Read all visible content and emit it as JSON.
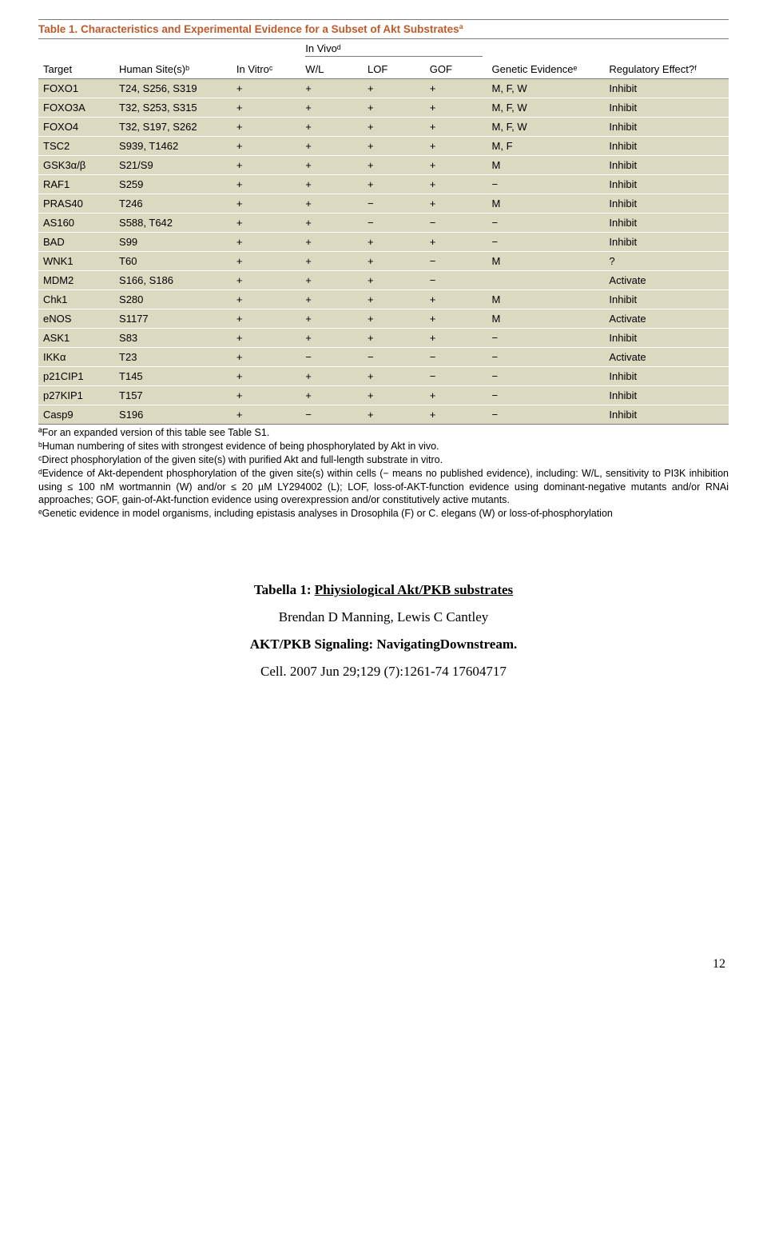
{
  "table": {
    "title": "Table 1. Characteristics and Experimental Evidence for a Subset of Akt Substratesª",
    "group_header": "In Vivoᵈ",
    "columns": [
      "Target",
      "Human Site(s)ᵇ",
      "In Vitroᶜ",
      "W/L",
      "LOF",
      "GOF",
      "Genetic Evidenceᵉ",
      "Regulatory Effect?ᶠ"
    ],
    "col_widths": [
      "11%",
      "17%",
      "10%",
      "9%",
      "9%",
      "9%",
      "17%",
      "18%"
    ],
    "rows": [
      [
        "FOXO1",
        "T24, S256, S319",
        "+",
        "+",
        "+",
        "+",
        "M, F, W",
        "Inhibit"
      ],
      [
        "FOXO3A",
        "T32, S253, S315",
        "+",
        "+",
        "+",
        "+",
        "M, F, W",
        "Inhibit"
      ],
      [
        "FOXO4",
        "T32, S197, S262",
        "+",
        "+",
        "+",
        "+",
        "M, F, W",
        "Inhibit"
      ],
      [
        "TSC2",
        "S939, T1462",
        "+",
        "+",
        "+",
        "+",
        "M, F",
        "Inhibit"
      ],
      [
        "GSK3α/β",
        "S21/S9",
        "+",
        "+",
        "+",
        "+",
        "M",
        "Inhibit"
      ],
      [
        "RAF1",
        "S259",
        "+",
        "+",
        "+",
        "+",
        "−",
        "Inhibit"
      ],
      [
        "PRAS40",
        "T246",
        "+",
        "+",
        "−",
        "+",
        "M",
        "Inhibit"
      ],
      [
        "AS160",
        "S588, T642",
        "+",
        "+",
        "−",
        "−",
        "−",
        "Inhibit"
      ],
      [
        "BAD",
        "S99",
        "+",
        "+",
        "+",
        "+",
        "−",
        "Inhibit"
      ],
      [
        "WNK1",
        "T60",
        "+",
        "+",
        "+",
        "−",
        "M",
        "?"
      ],
      [
        "MDM2",
        "S166, S186",
        "+",
        "+",
        "+",
        "−",
        "",
        "Activate"
      ],
      [
        "Chk1",
        "S280",
        "+",
        "+",
        "+",
        "+",
        "M",
        "Inhibit"
      ],
      [
        "eNOS",
        "S1177",
        "+",
        "+",
        "+",
        "+",
        "M",
        "Activate"
      ],
      [
        "ASK1",
        "S83",
        "+",
        "+",
        "+",
        "+",
        "−",
        "Inhibit"
      ],
      [
        "IKKα",
        "T23",
        "+",
        "−",
        "−",
        "−",
        "−",
        "Activate"
      ],
      [
        "p21CIP1",
        "T145",
        "+",
        "+",
        "+",
        "−",
        "−",
        "Inhibit"
      ],
      [
        "p27KIP1",
        "T157",
        "+",
        "+",
        "+",
        "+",
        "−",
        "Inhibit"
      ],
      [
        "Casp9",
        "S196",
        "+",
        "−",
        "+",
        "+",
        "−",
        "Inhibit"
      ]
    ]
  },
  "footnotes": [
    "ªFor an expanded version of this table see Table S1.",
    "ᵇHuman numbering of sites with strongest evidence of being phosphorylated by Akt in vivo.",
    "ᶜDirect phosphorylation of the given site(s) with purified Akt and full-length substrate in vitro.",
    "ᵈEvidence of Akt-dependent phosphorylation of the given site(s) within cells (− means no published evidence), including: W/L, sensitivity to PI3K inhibition using ≤ 100 nM wortmannin (W) and/or ≤ 20 µM LY294002 (L); LOF, loss-of-AKT-function evidence using dominant-negative mutants and/or RNAi approaches; GOF, gain-of-Akt-function evidence using overexpression and/or constitutively active mutants.",
    "ᵉGenetic evidence in model organisms, including epistasis analyses in Drosophila (F) or C. elegans (W) or loss-of-phosphorylation"
  ],
  "caption": {
    "line1_bold_prefix": "Tabella 1: ",
    "line1_underlined": "Phiysiological Akt/PKB substrates",
    "line2": "Brendan D Manning, Lewis C Cantley",
    "line3": "AKT/PKB Signaling: NavigatingDownstream.",
    "line4": "Cell. 2007 Jun 29;129 (7):1261-74 17604717"
  },
  "page_number": "12"
}
